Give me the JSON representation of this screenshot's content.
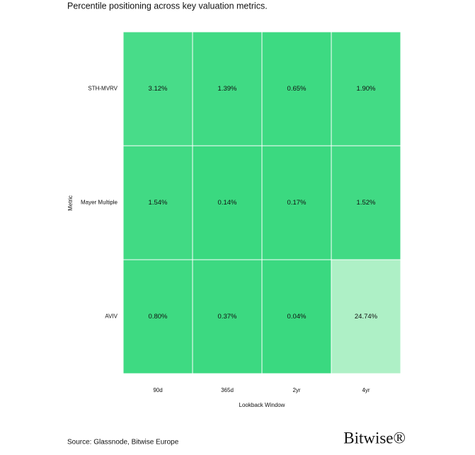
{
  "chart_data": {
    "type": "heatmap",
    "title": "Percentile positioning across key valuation metrics.",
    "x_label": "Lookback Window",
    "y_label": "Metric",
    "categories": [
      "90d",
      "365d",
      "2yr",
      "4yr"
    ],
    "rows": [
      "STH-MVRV",
      "Mayer Multiple",
      "AVIV"
    ],
    "values": [
      [
        3.12,
        1.39,
        0.65,
        1.9
      ],
      [
        1.54,
        0.14,
        0.17,
        1.52
      ],
      [
        0.8,
        0.37,
        0.04,
        24.74
      ]
    ],
    "value_labels": [
      [
        "3.12%",
        "1.39%",
        "0.65%",
        "1.90%"
      ],
      [
        "1.54%",
        "0.14%",
        "0.17%",
        "1.52%"
      ],
      [
        "0.80%",
        "0.37%",
        "0.04%",
        "24.74%"
      ]
    ],
    "colorscale": [
      "#3ad980",
      "#aef0c6"
    ],
    "source": "Source: Glassnode, Bitwise Europe",
    "brand": "Bitwise®"
  }
}
